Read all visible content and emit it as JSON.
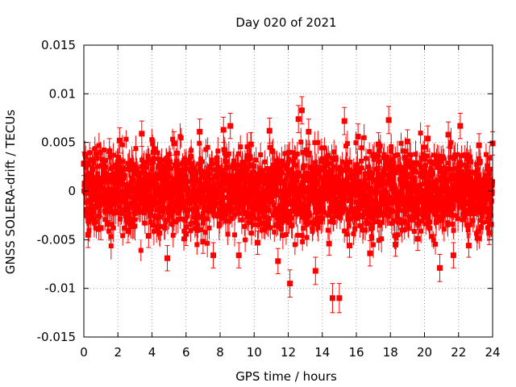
{
  "chart_data": {
    "type": "scatter",
    "title": "Day 020 of 2021",
    "xlabel": "GPS time / hours",
    "ylabel": "GNSS SOLERA-drift / TECUs",
    "xlim": [
      0,
      24
    ],
    "ylim": [
      -0.015,
      0.015
    ],
    "xticks": [
      0,
      2,
      4,
      6,
      8,
      10,
      12,
      14,
      16,
      18,
      20,
      22,
      24
    ],
    "xtick_labels": [
      "0",
      "2",
      "4",
      "6",
      "8",
      "10",
      "12",
      "14",
      "16",
      "18",
      "20",
      "22",
      "24"
    ],
    "yticks": [
      -0.015,
      -0.01,
      -0.005,
      0,
      0.005,
      0.01,
      0.015
    ],
    "ytick_labels": [
      "-0.015",
      "-0.01",
      "-0.005",
      "0",
      "0.005",
      "0.01",
      "0.015"
    ],
    "grid": true,
    "marker": "square",
    "color": "#ff0000",
    "series": [
      {
        "points": [
          {
            "x": 0.0,
            "y": 0.0028,
            "err": 0.0012
          },
          {
            "x": 0.25,
            "y": -0.0045,
            "err": 0.0013
          },
          {
            "x": 0.5,
            "y": 0.0032,
            "err": 0.0012
          },
          {
            "x": 1.0,
            "y": -0.0038,
            "err": 0.0012
          },
          {
            "x": 1.5,
            "y": 0.0041,
            "err": 0.0013
          },
          {
            "x": 2.1,
            "y": 0.0052,
            "err": 0.0013
          },
          {
            "x": 2.6,
            "y": -0.0041,
            "err": 0.0012
          },
          {
            "x": 3.4,
            "y": 0.0059,
            "err": 0.0013
          },
          {
            "x": 3.8,
            "y": -0.0046,
            "err": 0.0012
          },
          {
            "x": 4.9,
            "y": -0.0069,
            "err": 0.0013
          },
          {
            "x": 5.3,
            "y": 0.0049,
            "err": 0.0012
          },
          {
            "x": 6.0,
            "y": -0.0044,
            "err": 0.0012
          },
          {
            "x": 6.8,
            "y": 0.0061,
            "err": 0.0013
          },
          {
            "x": 7.0,
            "y": -0.0052,
            "err": 0.0012
          },
          {
            "x": 7.6,
            "y": -0.0066,
            "err": 0.0013
          },
          {
            "x": 8.2,
            "y": 0.0063,
            "err": 0.0013
          },
          {
            "x": 8.6,
            "y": 0.0067,
            "err": 0.0013
          },
          {
            "x": 9.1,
            "y": -0.0066,
            "err": 0.0013
          },
          {
            "x": 9.8,
            "y": 0.0048,
            "err": 0.0012
          },
          {
            "x": 10.2,
            "y": -0.0053,
            "err": 0.0012
          },
          {
            "x": 10.9,
            "y": 0.0062,
            "err": 0.0013
          },
          {
            "x": 11.4,
            "y": -0.0072,
            "err": 0.0013
          },
          {
            "x": 12.1,
            "y": -0.0095,
            "err": 0.0014
          },
          {
            "x": 12.6,
            "y": 0.0074,
            "err": 0.0014
          },
          {
            "x": 12.8,
            "y": 0.0083,
            "err": 0.0014
          },
          {
            "x": 13.2,
            "y": 0.0061,
            "err": 0.0013
          },
          {
            "x": 13.6,
            "y": -0.0082,
            "err": 0.0014
          },
          {
            "x": 14.4,
            "y": -0.0054,
            "err": 0.0012
          },
          {
            "x": 14.6,
            "y": -0.011,
            "err": 0.0015
          },
          {
            "x": 15.0,
            "y": -0.011,
            "err": 0.0015
          },
          {
            "x": 15.3,
            "y": 0.0072,
            "err": 0.0014
          },
          {
            "x": 15.6,
            "y": -0.0056,
            "err": 0.0012
          },
          {
            "x": 16.1,
            "y": 0.0056,
            "err": 0.0013
          },
          {
            "x": 16.8,
            "y": -0.0064,
            "err": 0.0013
          },
          {
            "x": 17.3,
            "y": 0.0048,
            "err": 0.0012
          },
          {
            "x": 17.9,
            "y": 0.0073,
            "err": 0.0014
          },
          {
            "x": 18.3,
            "y": -0.0055,
            "err": 0.0012
          },
          {
            "x": 19.0,
            "y": 0.0051,
            "err": 0.0012
          },
          {
            "x": 19.6,
            "y": -0.0049,
            "err": 0.0012
          },
          {
            "x": 20.2,
            "y": 0.0054,
            "err": 0.0013
          },
          {
            "x": 20.9,
            "y": -0.0079,
            "err": 0.0014
          },
          {
            "x": 21.4,
            "y": 0.0058,
            "err": 0.0013
          },
          {
            "x": 21.7,
            "y": -0.0066,
            "err": 0.0013
          },
          {
            "x": 22.1,
            "y": 0.0067,
            "err": 0.0013
          },
          {
            "x": 22.6,
            "y": -0.0056,
            "err": 0.0012
          },
          {
            "x": 23.2,
            "y": 0.0047,
            "err": 0.0012
          },
          {
            "x": 23.8,
            "y": -0.0043,
            "err": 0.0012
          },
          {
            "x": 24.0,
            "y": 0.0049,
            "err": 0.0012
          }
        ],
        "band_note": "dense band of points with error bars roughly between -0.005 and 0.005 across 0–24 h"
      }
    ]
  }
}
